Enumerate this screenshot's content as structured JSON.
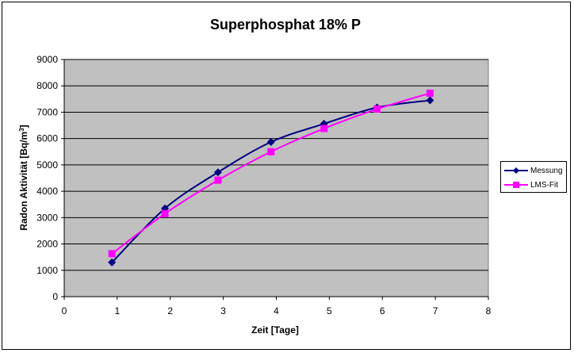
{
  "chart_data": {
    "type": "line",
    "title": "Superphosphat 18% P",
    "xlabel": "Zeit [Tage]",
    "ylabel_main": "Radon Aktivität [Bq/m",
    "ylabel_sup": "3",
    "ylabel_end": "]",
    "xlim": [
      0,
      8
    ],
    "ylim": [
      0,
      9000
    ],
    "x_ticks": [
      0,
      1,
      2,
      3,
      4,
      5,
      6,
      7,
      8
    ],
    "y_ticks": [
      0,
      1000,
      2000,
      3000,
      4000,
      5000,
      6000,
      7000,
      8000,
      9000
    ],
    "grid": true,
    "plot_background": "#c0c0c0",
    "legend_position": "right",
    "series": [
      {
        "name": "Messung",
        "color": "#000080",
        "marker": "diamond",
        "x": [
          0.9,
          1.9,
          2.9,
          3.9,
          4.9,
          5.9,
          6.9
        ],
        "values": [
          1300,
          3350,
          4720,
          5870,
          6560,
          7180,
          7450
        ]
      },
      {
        "name": "LMS-Fit",
        "color": "#ff00ff",
        "marker": "square",
        "x": [
          0.9,
          1.9,
          2.9,
          3.9,
          4.9,
          5.9,
          6.9
        ],
        "values": [
          1630,
          3150,
          4420,
          5500,
          6380,
          7120,
          7720
        ]
      }
    ]
  }
}
